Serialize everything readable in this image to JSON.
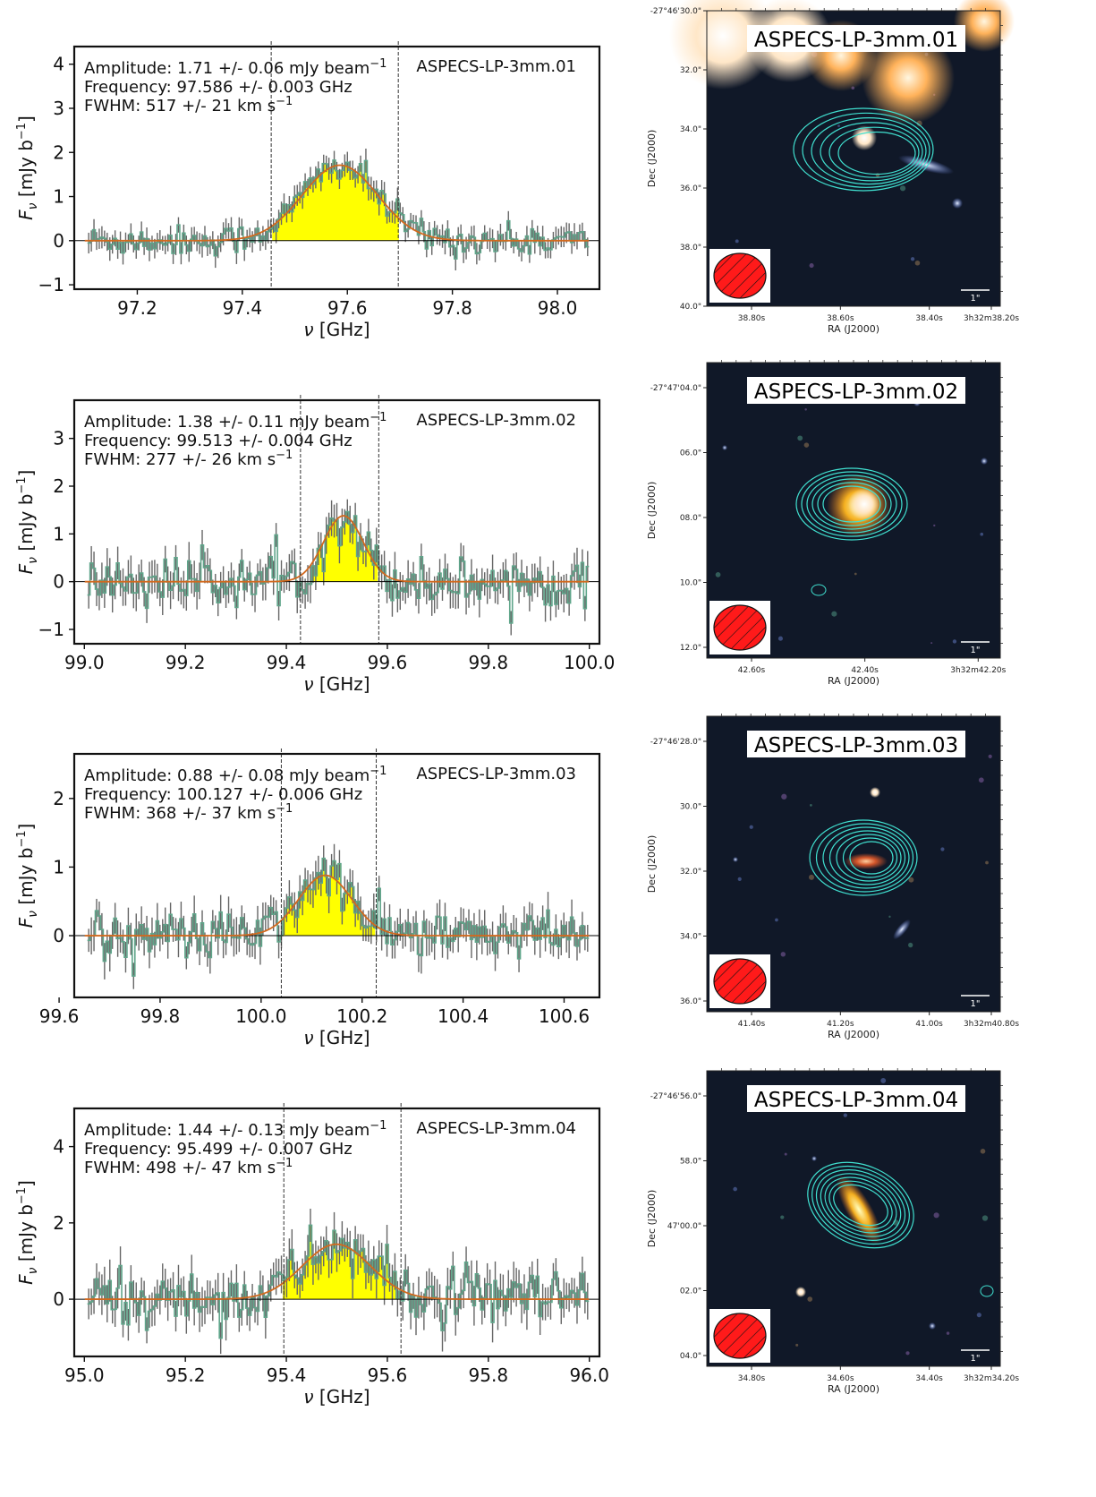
{
  "panels": [
    {
      "id": "ASPECS-LP-3mm.01",
      "info": {
        "amplitude": "Amplitude: 1.71 +/- 0.06 mJy beam",
        "frequency": "Frequency: 97.586 +/- 0.003 GHz",
        "fwhm": "FWHM: 517 +/- 21 km s"
      },
      "spectrum": {
        "xlim": [
          97.08,
          98.08
        ],
        "ylim": [
          -1.1,
          4.4
        ],
        "xticks": [
          "97.2",
          "97.4",
          "97.6",
          "97.8",
          "98.0"
        ],
        "xtick_values": [
          97.2,
          97.4,
          97.6,
          97.8,
          98.0
        ],
        "yticks": [
          "−1",
          "0",
          "1",
          "2",
          "3",
          "4"
        ],
        "ytick_values": [
          -1,
          0,
          1,
          2,
          3,
          4
        ],
        "xlabel": "ν [GHz]",
        "ylabel": "Fν [mJy b⁻¹]",
        "amplitude": 1.71,
        "center": 97.586,
        "sigma": 0.0715,
        "window": [
          97.455,
          97.697
        ],
        "noise": 0.22
      },
      "image": {
        "title": "ASPECS-LP-3mm.01",
        "dec_ticks": [
          "-27°46'30.0\"",
          "32.0\"",
          "34.0\"",
          "36.0\"",
          "38.0\"",
          "40.0\""
        ],
        "ra_ticks": [
          "38.80s",
          "38.60s",
          "38.40s",
          "3h32m38.20s"
        ],
        "xlabel": "RA (J2000)",
        "ylabel": "Dec (J2000)",
        "scale": "1\""
      }
    },
    {
      "id": "ASPECS-LP-3mm.02",
      "info": {
        "amplitude": "Amplitude: 1.38 +/- 0.11 mJy beam",
        "frequency": "Frequency: 99.513 +/- 0.004 GHz",
        "fwhm": "FWHM: 277 +/- 26 km s"
      },
      "spectrum": {
        "xlim": [
          98.98,
          100.02
        ],
        "ylim": [
          -1.3,
          3.8
        ],
        "xticks": [
          "99.0",
          "99.2",
          "99.4",
          "99.6",
          "99.8",
          "100.0"
        ],
        "xtick_values": [
          99.0,
          99.2,
          99.4,
          99.6,
          99.8,
          100.0
        ],
        "yticks": [
          "−1",
          "0",
          "1",
          "2",
          "3"
        ],
        "ytick_values": [
          -1,
          0,
          1,
          2,
          3
        ],
        "xlabel": "ν [GHz]",
        "ylabel": "Fν [mJy b⁻¹]",
        "amplitude": 1.38,
        "center": 99.513,
        "sigma": 0.039,
        "window": [
          99.428,
          99.583
        ],
        "noise": 0.32
      },
      "image": {
        "title": "ASPECS-LP-3mm.02",
        "dec_ticks": [
          "-27°47'04.0\"",
          "06.0\"",
          "08.0\"",
          "10.0\"",
          "12.0\""
        ],
        "ra_ticks": [
          "42.60s",
          "42.40s",
          "3h32m42.20s"
        ],
        "xlabel": "RA (J2000)",
        "ylabel": "Dec (J2000)",
        "scale": "1\""
      }
    },
    {
      "id": "ASPECS-LP-3mm.03",
      "info": {
        "amplitude": "Amplitude: 0.88 +/- 0.08 mJy beam",
        "frequency": "Frequency: 100.127 +/- 0.006 GHz",
        "fwhm": "FWHM: 368 +/- 37 km s"
      },
      "spectrum": {
        "xlim": [
          99.63,
          100.67
        ],
        "ylim": [
          -0.9,
          2.65
        ],
        "xticks": [
          "99.6",
          "99.8",
          "100.0",
          "100.2",
          "100.4",
          "100.6"
        ],
        "xtick_values": [
          99.6,
          99.8,
          100.0,
          100.2,
          100.4,
          100.6
        ],
        "yticks": [
          "0",
          "1",
          "2"
        ],
        "ytick_values": [
          0,
          1,
          2
        ],
        "xlabel": "ν [GHz]",
        "ylabel": "Fν [mJy b⁻¹]",
        "amplitude": 0.88,
        "center": 100.127,
        "sigma": 0.0525,
        "window": [
          100.04,
          100.228
        ],
        "noise": 0.22
      },
      "image": {
        "title": "ASPECS-LP-3mm.03",
        "dec_ticks": [
          "-27°46'28.0\"",
          "30.0\"",
          "32.0\"",
          "34.0\"",
          "36.0\""
        ],
        "ra_ticks": [
          "41.40s",
          "41.20s",
          "41.00s",
          "3h32m40.80s"
        ],
        "xlabel": "RA (J2000)",
        "ylabel": "Dec (J2000)",
        "scale": "1\""
      }
    },
    {
      "id": "ASPECS-LP-3mm.04",
      "info": {
        "amplitude": "Amplitude: 1.44 +/- 0.13 mJy beam",
        "frequency": "Frequency: 95.499 +/- 0.007 GHz",
        "fwhm": "FWHM: 498 +/- 47 km s"
      },
      "spectrum": {
        "xlim": [
          94.98,
          96.02
        ],
        "ylim": [
          -1.5,
          5.0
        ],
        "xticks": [
          "95.0",
          "95.2",
          "95.4",
          "95.6",
          "95.8",
          "96.0"
        ],
        "xtick_values": [
          95.0,
          95.2,
          95.4,
          95.6,
          95.8,
          96.0
        ],
        "yticks": [
          "0",
          "2",
          "4"
        ],
        "ytick_values": [
          0,
          2,
          4
        ],
        "xlabel": "ν [GHz]",
        "ylabel": "Fν [mJy b⁻¹]",
        "amplitude": 1.44,
        "center": 95.499,
        "sigma": 0.0675,
        "window": [
          95.395,
          95.627
        ],
        "noise": 0.45
      },
      "image": {
        "title": "ASPECS-LP-3mm.04",
        "dec_ticks": [
          "-27°46'56.0\"",
          "58.0\"",
          "47'00.0\"",
          "02.0\"",
          "04.0\""
        ],
        "ra_ticks": [
          "34.80s",
          "34.60s",
          "34.40s",
          "3h32m34.20s"
        ],
        "xlabel": "RA (J2000)",
        "ylabel": "Dec (J2000)",
        "scale": "1\""
      }
    }
  ],
  "chart_data": [
    {
      "type": "line",
      "title": "ASPECS-LP-3mm.01",
      "xlabel": "ν [GHz]",
      "ylabel": "Fν [mJy b⁻¹]",
      "xlim": [
        97.08,
        98.08
      ],
      "ylim": [
        -1.1,
        4.4
      ],
      "series": [
        {
          "name": "Gaussian fit",
          "amplitude": 1.71,
          "center": 97.586,
          "fwhm_kms": 517
        }
      ]
    },
    {
      "type": "line",
      "title": "ASPECS-LP-3mm.02",
      "xlabel": "ν [GHz]",
      "ylabel": "Fν [mJy b⁻¹]",
      "xlim": [
        98.98,
        100.02
      ],
      "ylim": [
        -1.3,
        3.8
      ],
      "series": [
        {
          "name": "Gaussian fit",
          "amplitude": 1.38,
          "center": 99.513,
          "fwhm_kms": 277
        }
      ]
    },
    {
      "type": "line",
      "title": "ASPECS-LP-3mm.03",
      "xlabel": "ν [GHz]",
      "ylabel": "Fν [mJy b⁻¹]",
      "xlim": [
        99.63,
        100.67
      ],
      "ylim": [
        -0.9,
        2.65
      ],
      "series": [
        {
          "name": "Gaussian fit",
          "amplitude": 0.88,
          "center": 100.127,
          "fwhm_kms": 368
        }
      ]
    },
    {
      "type": "line",
      "title": "ASPECS-LP-3mm.04",
      "xlabel": "ν [GHz]",
      "ylabel": "Fν [mJy b⁻¹]",
      "xlim": [
        94.98,
        96.02
      ],
      "ylim": [
        -1.5,
        5.0
      ],
      "series": [
        {
          "name": "Gaussian fit",
          "amplitude": 1.44,
          "center": 95.499,
          "fwhm_kms": 498
        }
      ]
    }
  ],
  "colors": {
    "fill": "#ffff00",
    "fit": "#d2691e",
    "step": "#5fa58a",
    "errbar": "#666666",
    "image_bg": "#101828",
    "contour": "#40e0d0",
    "beam": "#ff1a1a"
  }
}
